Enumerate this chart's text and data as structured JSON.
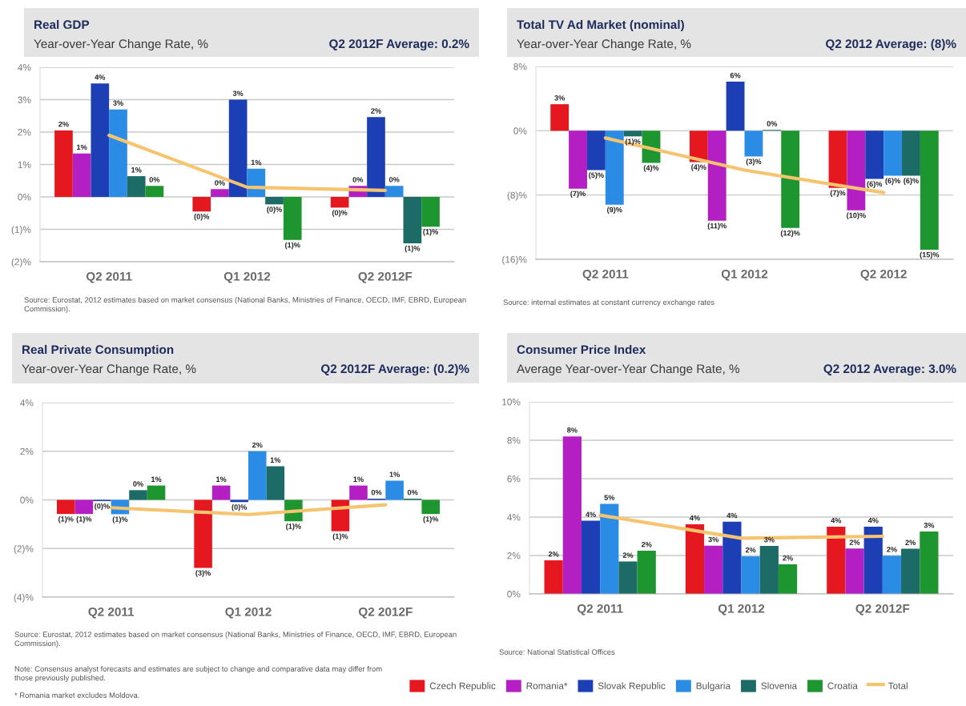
{
  "chart_data": [
    {
      "type": "bar",
      "title": "Real GDP",
      "subtitle": "Year-over-Year Change Rate, %",
      "annotations": [
        "Q2 2012F Average: 0.2%",
        "Source: Eurostat, 2012 estimates based on market consensus (National Banks, Ministries of Finance, OECD, IMF, EBRD, European Commission)."
      ],
      "categories": [
        "Q2 2011",
        "Q1 2012",
        "Q2 2012F"
      ],
      "series": [
        {
          "name": "Czech Republic",
          "color": "#e5171f",
          "values": [
            2.05,
            -0.45,
            -0.33
          ],
          "value_labels": [
            "2%",
            "(0)%",
            "(0)%"
          ]
        },
        {
          "name": "Romania*",
          "color": "#b41fc4",
          "values": [
            1.34,
            0.24,
            0.34
          ],
          "value_labels": [
            "1%",
            "0%",
            "0%"
          ]
        },
        {
          "name": "Slovak Republic",
          "color": "#1d3fb5",
          "values": [
            3.5,
            3.0,
            2.46
          ],
          "value_labels": [
            "4%",
            "3%",
            "2%"
          ]
        },
        {
          "name": "Bulgaria",
          "color": "#2b8ce6",
          "values": [
            2.7,
            0.87,
            0.34
          ],
          "value_labels": [
            "3%",
            "1%",
            "0%"
          ]
        },
        {
          "name": "Slovenia",
          "color": "#1c6b66",
          "values": [
            0.64,
            -0.23,
            -1.43
          ],
          "value_labels": [
            "1%",
            "(0)%",
            "(1)%"
          ]
        },
        {
          "name": "Croatia",
          "color": "#1e9630",
          "values": [
            0.34,
            -1.33,
            -0.92
          ],
          "value_labels": [
            "0%",
            "(1)%",
            "(1)%"
          ]
        },
        {
          "name": "Total",
          "type": "line",
          "color": "#f6c46f",
          "values": [
            1.9,
            0.3,
            0.2
          ]
        }
      ],
      "ylim": [
        -2,
        4
      ],
      "yticks": [
        {
          "value": -2,
          "label": "(2)%"
        },
        {
          "value": -1,
          "label": "(1)%"
        },
        {
          "value": 0,
          "label": "0%"
        },
        {
          "value": 1,
          "label": "1%"
        },
        {
          "value": 2,
          "label": "2%"
        },
        {
          "value": 3,
          "label": "3%"
        },
        {
          "value": 4,
          "label": "4%"
        }
      ],
      "grid": "y",
      "legend": "bottom"
    },
    {
      "type": "bar",
      "title": "Total TV Ad Market (nominal)",
      "subtitle": "Year-over-Year Change Rate, %",
      "annotations": [
        "Q2 2012 Average: (8)%",
        "Source: internal estimates at constant currency exchange rates"
      ],
      "categories": [
        "Q2 2011",
        "Q1 2012",
        "Q2 2012"
      ],
      "series": [
        {
          "color": "#e5171f",
          "values": [
            3.3,
            -3.9,
            -7.1
          ],
          "value_labels": [
            "3%",
            "(4)%",
            "(7)%"
          ]
        },
        {
          "color": "#b41fc4",
          "values": [
            -7.2,
            -11.2,
            -9.9
          ],
          "value_labels": [
            "(7)%",
            "(11)%",
            "(10)%"
          ]
        },
        {
          "color": "#1d3fb5",
          "values": [
            -4.9,
            6.1,
            -6.0
          ],
          "value_labels": [
            "(5)%",
            "6%",
            "(6)%"
          ]
        },
        {
          "color": "#2b8ce6",
          "values": [
            -9.2,
            -3.2,
            -5.6
          ],
          "value_labels": [
            "(9)%",
            "(3)%",
            "(6)%"
          ]
        },
        {
          "color": "#1c6b66",
          "values": [
            -0.7,
            0.1,
            -5.6
          ],
          "value_labels": [
            "(1)%",
            "0%",
            "(6)%"
          ]
        },
        {
          "color": "#1e9630",
          "values": [
            -4.0,
            -12.1,
            -14.8
          ],
          "value_labels": [
            "(4)%",
            "(12)%",
            "(15)%"
          ]
        },
        {
          "type": "line",
          "color": "#f6c46f",
          "values": [
            -0.9,
            -4.9,
            -7.7
          ]
        }
      ],
      "ylim": [
        -16,
        8
      ],
      "yticks": [
        {
          "value": -16,
          "label": "(16)%"
        },
        {
          "value": -8,
          "label": "(8)%"
        },
        {
          "value": 0,
          "label": "0%"
        },
        {
          "value": 8,
          "label": "8%"
        }
      ],
      "grid": "y"
    },
    {
      "type": "bar",
      "title": "Real Private Consumption",
      "subtitle": "Year-over-Year Change Rate, %",
      "annotations": [
        "Q2 2012F Average: (0.2)%",
        "Source: Eurostat, 2012 estimates based on market consensus (National Banks, Ministries of Finance, OECD, IMF, EBRD, European Commission).",
        "Note: Consensus analyst forecasts and estimates are subject to change and comparative data may differ from those previously published.",
        "* Romania market excludes Moldova."
      ],
      "categories": [
        "Q2 2011",
        "Q1 2012",
        "Q2 2012F"
      ],
      "series": [
        {
          "color": "#e5171f",
          "values": [
            -0.58,
            -2.8,
            -1.29
          ],
          "value_labels": [
            "(1)%",
            "(3)%",
            "(1)%"
          ]
        },
        {
          "color": "#b41fc4",
          "values": [
            -0.58,
            0.59,
            0.59
          ],
          "value_labels": [
            "(1)%",
            "1%",
            "1%"
          ]
        },
        {
          "color": "#1d3fb5",
          "values": [
            -0.05,
            -0.09,
            0.05
          ],
          "value_labels": [
            "(0)%",
            "(0)%",
            "0%"
          ]
        },
        {
          "color": "#2b8ce6",
          "values": [
            -0.59,
            2.0,
            0.79
          ],
          "value_labels": [
            "(1)%",
            "2%",
            "1%"
          ]
        },
        {
          "color": "#1c6b66",
          "values": [
            0.4,
            1.38,
            0.05
          ],
          "value_labels": [
            "0%",
            "1%",
            "0%"
          ]
        },
        {
          "color": "#1e9630",
          "values": [
            0.59,
            -0.88,
            -0.58
          ],
          "value_labels": [
            "1%",
            "(1)%",
            "(1)%"
          ]
        },
        {
          "type": "line",
          "color": "#f6c46f",
          "values": [
            -0.32,
            -0.6,
            -0.2
          ]
        }
      ],
      "ylim": [
        -4,
        4
      ],
      "yticks": [
        {
          "value": -4,
          "label": "(4)%"
        },
        {
          "value": -2,
          "label": "(2)%"
        },
        {
          "value": 0,
          "label": "0%"
        },
        {
          "value": 2,
          "label": "2%"
        },
        {
          "value": 4,
          "label": "4%"
        }
      ],
      "grid": "y"
    },
    {
      "type": "bar",
      "title": "Consumer Price Index",
      "subtitle": "Average Year-over-Year Change Rate, %",
      "annotations": [
        "Q2 2012 Average: 3.0%",
        "Source: National Statistical Offices"
      ],
      "categories": [
        "Q2 2011",
        "Q1 2012",
        "Q2 2012F"
      ],
      "series": [
        {
          "color": "#e5171f",
          "values": [
            1.75,
            3.63,
            3.5
          ],
          "value_labels": [
            "2%",
            "4%",
            "4%"
          ]
        },
        {
          "color": "#b41fc4",
          "values": [
            8.2,
            2.51,
            2.36
          ],
          "value_labels": [
            "8%",
            "3%",
            "2%"
          ]
        },
        {
          "color": "#1d3fb5",
          "values": [
            3.81,
            3.76,
            3.5
          ],
          "value_labels": [
            "4%",
            "4%",
            "4%"
          ]
        },
        {
          "color": "#2b8ce6",
          "values": [
            4.69,
            1.96,
            1.99
          ],
          "value_labels": [
            "5%",
            "2%",
            "2%"
          ]
        },
        {
          "color": "#1c6b66",
          "values": [
            1.69,
            2.5,
            2.35
          ],
          "value_labels": [
            "2%",
            "3%",
            "2%"
          ]
        },
        {
          "color": "#1e9630",
          "values": [
            2.25,
            1.54,
            3.25
          ],
          "value_labels": [
            "2%",
            "2%",
            "3%"
          ]
        },
        {
          "type": "line",
          "color": "#f6c46f",
          "values": [
            4.1,
            2.9,
            3.0
          ]
        }
      ],
      "ylim": [
        0,
        10
      ],
      "yticks": [
        {
          "value": 0,
          "label": "0%"
        },
        {
          "value": 2,
          "label": "2%"
        },
        {
          "value": 4,
          "label": "4%"
        },
        {
          "value": 6,
          "label": "6%"
        },
        {
          "value": 8,
          "label": "8%"
        },
        {
          "value": 10,
          "label": "10%"
        }
      ],
      "grid": "y"
    }
  ]
}
